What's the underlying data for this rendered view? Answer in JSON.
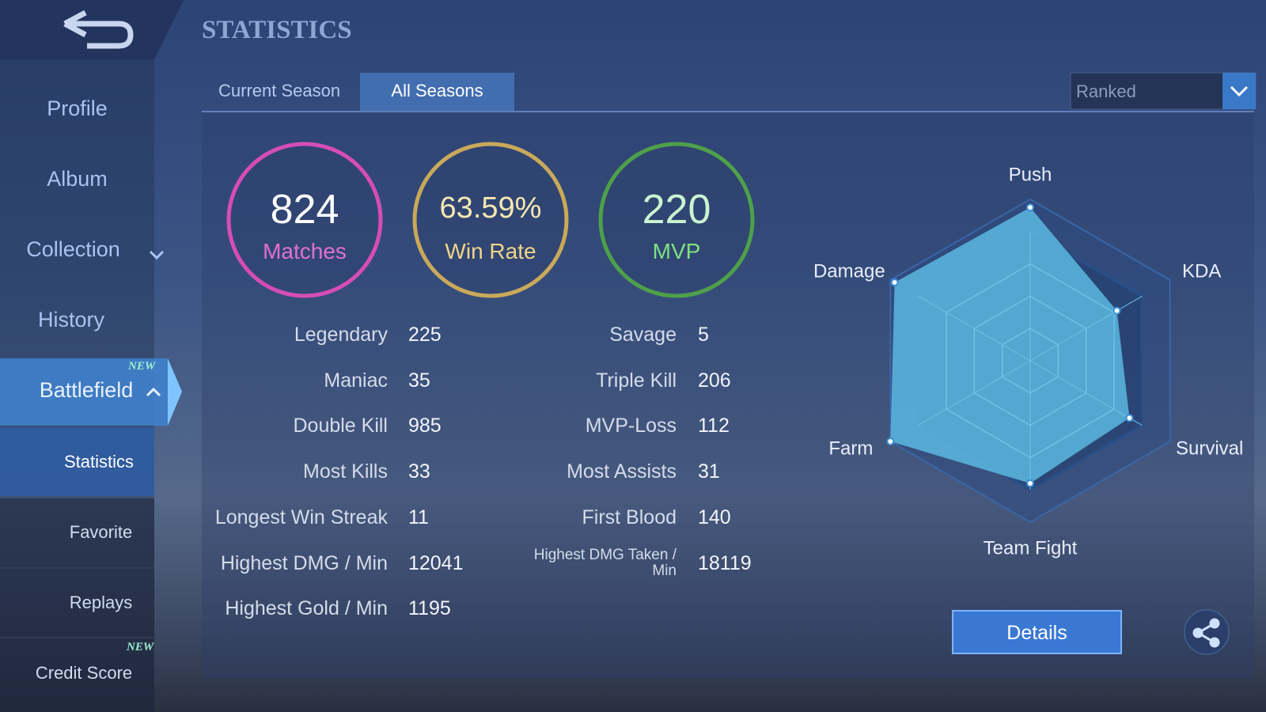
{
  "header": {
    "title": "STATISTICS"
  },
  "sidebar": {
    "items": [
      {
        "label": "Profile"
      },
      {
        "label": "Album"
      },
      {
        "label": "Collection"
      },
      {
        "label": "History"
      },
      {
        "label": "Battlefield",
        "badge": "NEW"
      },
      {
        "label": "Statistics"
      },
      {
        "label": "Favorite"
      },
      {
        "label": "Replays"
      },
      {
        "label": "Credit Score",
        "badge": "NEW"
      }
    ]
  },
  "tabs": [
    "Current Season",
    "All Seasons"
  ],
  "mode_select": "Ranked",
  "summary": [
    {
      "value": 824,
      "label": "Matches"
    },
    {
      "value": "63.59%",
      "label": "Win Rate"
    },
    {
      "value": 220,
      "label": "MVP"
    }
  ],
  "stats_left": [
    {
      "label": "Legendary",
      "value": 225
    },
    {
      "label": "Maniac",
      "value": 35
    },
    {
      "label": "Double Kill",
      "value": 985
    },
    {
      "label": "Most Kills",
      "value": 33
    },
    {
      "label": "Longest Win Streak",
      "value": 11
    },
    {
      "label": "Highest DMG / Min",
      "value": 12041
    },
    {
      "label": "Highest Gold / Min",
      "value": 1195
    }
  ],
  "stats_right": [
    {
      "label": "Savage",
      "value": 5
    },
    {
      "label": "Triple Kill",
      "value": 206
    },
    {
      "label": "MVP-Loss",
      "value": 112
    },
    {
      "label": "Most Assists",
      "value": 31
    },
    {
      "label": "First Blood",
      "value": 140
    },
    {
      "label": "Highest DMG Taken / Min",
      "value": 18119
    }
  ],
  "chart_data": {
    "type": "radar",
    "categories": [
      "Push",
      "KDA",
      "Survival",
      "Team Fight",
      "Farm",
      "Damage"
    ],
    "values": [
      95,
      62,
      71,
      76,
      100,
      97
    ],
    "rlim": [
      0,
      100
    ],
    "color": "#5bb8e0"
  },
  "buttons": {
    "details": "Details"
  }
}
